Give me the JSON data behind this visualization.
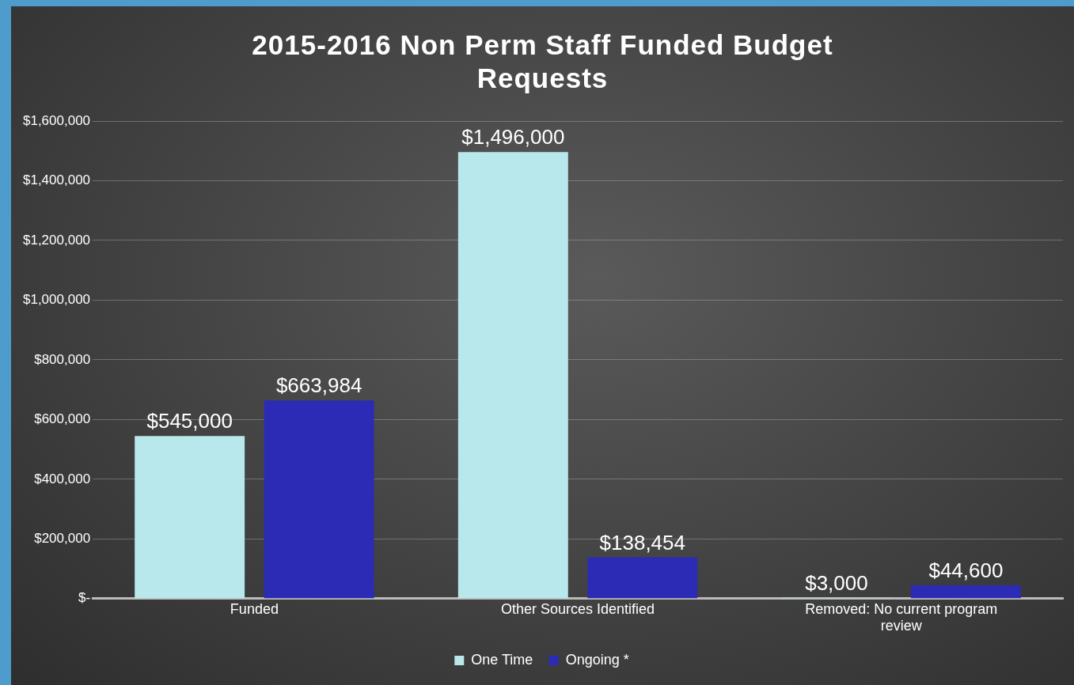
{
  "chart_data": {
    "type": "bar",
    "title": "2015-2016 Non Perm Staff Funded Budget Requests",
    "categories": [
      "Funded",
      "Other Sources Identified",
      "Removed: No current program review"
    ],
    "series": [
      {
        "name": "One Time",
        "color": "#b9e8ec",
        "values": [
          545000,
          1496000,
          3000
        ],
        "value_labels": [
          "$545,000",
          "$1,496,000",
          "$3,000"
        ]
      },
      {
        "name": "Ongoing *",
        "color": "#2b2bb5",
        "values": [
          663984,
          138454,
          44600
        ],
        "value_labels": [
          "$663,984",
          "$138,454",
          "$44,600"
        ]
      }
    ],
    "ylim": [
      0,
      1600000
    ],
    "yticks": [
      {
        "value": 0,
        "label": "$-"
      },
      {
        "value": 200000,
        "label": "$200,000"
      },
      {
        "value": 400000,
        "label": "$400,000"
      },
      {
        "value": 600000,
        "label": "$600,000"
      },
      {
        "value": 800000,
        "label": "$800,000"
      },
      {
        "value": 1000000,
        "label": "$1,000,000"
      },
      {
        "value": 1200000,
        "label": "$1,200,000"
      },
      {
        "value": 1400000,
        "label": "$1,400,000"
      },
      {
        "value": 1600000,
        "label": "$1,600,000"
      }
    ],
    "grid": "y",
    "legend": "bottom"
  }
}
